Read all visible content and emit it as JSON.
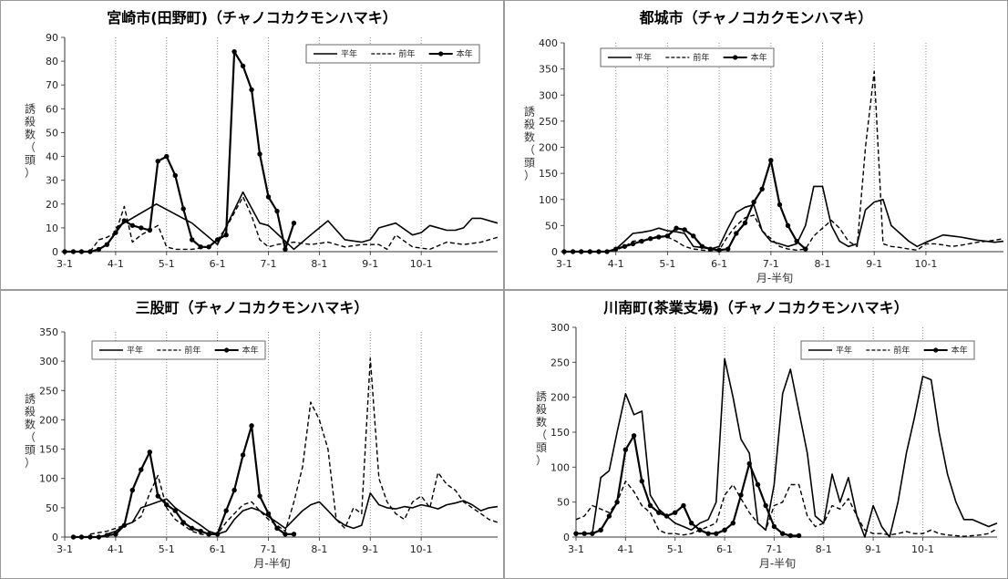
{
  "chart_data": [
    {
      "type": "line",
      "title": "宮崎市(田野町)（チャノコカクモンハマキ）",
      "xlabel": "",
      "ylabel": "誘殺数（頭）",
      "ylim": [
        0,
        90
      ],
      "yticks": [
        0,
        10,
        20,
        30,
        40,
        50,
        60,
        70,
        80,
        90
      ],
      "xticks": [
        "3-1",
        "4-1",
        "5-1",
        "6-1",
        "7-1",
        "8-1",
        "9-1",
        "10-1"
      ],
      "legend": "top-right",
      "series": [
        {
          "name": "平年",
          "style": "solid",
          "x": [
            4.0,
            4.8,
            5.5,
            6.0,
            6.5,
            6.83,
            7.0,
            7.5,
            7.83,
            8.17,
            8.5,
            8.83,
            9.0,
            9.17,
            9.5,
            9.83,
            10.0,
            10.17,
            10.5,
            10.67,
            10.83,
            11.0,
            11.17,
            11.5
          ],
          "values": [
            10,
            20,
            12,
            3,
            25,
            12,
            11,
            1,
            7,
            13,
            5,
            4,
            5,
            10,
            12,
            7,
            8,
            11,
            9,
            9,
            10,
            14,
            14,
            12
          ]
        },
        {
          "name": "前年",
          "style": "dashed",
          "x": [
            3.5,
            3.67,
            3.83,
            4.0,
            4.17,
            4.33,
            4.5,
            4.83,
            5.0,
            5.17,
            5.5,
            5.83,
            6.0,
            6.17,
            6.5,
            6.67,
            6.83,
            7.0,
            7.17,
            7.5,
            7.83,
            8.17,
            8.5,
            8.83,
            9.17,
            9.33,
            9.5,
            9.83,
            10.17,
            10.5,
            10.83,
            11.17,
            11.5
          ],
          "values": [
            0,
            5,
            6,
            8,
            19,
            4,
            7,
            11,
            2,
            1,
            1,
            2,
            5,
            10,
            23,
            15,
            5,
            2,
            3,
            4,
            3,
            4,
            2,
            3,
            3,
            1,
            7,
            2,
            1,
            4,
            3,
            4,
            6
          ]
        },
        {
          "name": "本年",
          "style": "markers",
          "x": [
            3.0,
            3.17,
            3.33,
            3.5,
            3.67,
            3.83,
            4.0,
            4.17,
            4.33,
            4.5,
            4.67,
            4.83,
            5.0,
            5.17,
            5.33,
            5.5,
            5.67,
            5.83,
            6.0,
            6.17,
            6.33,
            6.5,
            6.67,
            6.83,
            7.0,
            7.17,
            7.33,
            7.5
          ],
          "values": [
            0,
            0,
            0,
            0,
            1,
            3,
            8,
            13,
            11,
            10,
            9,
            38,
            40,
            32,
            18,
            5,
            2,
            2,
            5,
            7,
            84,
            78,
            68,
            41,
            23,
            17,
            1,
            12
          ]
        }
      ]
    },
    {
      "type": "line",
      "title": "都城市（チャノコカクモンハマキ）",
      "xlabel": "月-半旬",
      "ylabel": "誘殺数（頭）",
      "ylim": [
        0,
        400
      ],
      "yticks": [
        0,
        50,
        100,
        150,
        200,
        250,
        300,
        350,
        400
      ],
      "xticks": [
        "3-1",
        "4-1",
        "5-1",
        "6-1",
        "7-1",
        "8-1",
        "9-1",
        "10-1"
      ],
      "legend": "top-right",
      "series": [
        {
          "name": "平年",
          "style": "solid",
          "x": [
            3.83,
            4.0,
            4.17,
            4.33,
            4.5,
            4.67,
            4.83,
            5.0,
            5.17,
            5.33,
            5.5,
            5.67,
            5.83,
            6.0,
            6.17,
            6.33,
            6.5,
            6.67,
            6.83,
            7.0,
            7.17,
            7.33,
            7.5,
            7.67,
            7.83,
            8.0,
            8.17,
            8.33,
            8.5,
            8.67,
            8.83,
            9.0,
            9.17,
            9.33,
            9.5,
            9.67,
            9.83,
            10.0,
            10.17,
            10.33,
            10.5,
            10.67,
            10.83,
            11.0,
            11.17,
            11.33,
            11.5
          ],
          "values": [
            0,
            5,
            20,
            35,
            37,
            40,
            45,
            40,
            38,
            35,
            10,
            8,
            5,
            10,
            45,
            75,
            85,
            90,
            40,
            20,
            15,
            10,
            15,
            50,
            125,
            125,
            50,
            20,
            10,
            15,
            80,
            95,
            100,
            50,
            35,
            20,
            10,
            18,
            25,
            32,
            30,
            28,
            25,
            22,
            20,
            18,
            20
          ]
        },
        {
          "name": "前年",
          "style": "dashed",
          "x": [
            3.5,
            3.83,
            4.0,
            4.17,
            4.33,
            4.5,
            4.67,
            4.83,
            5.0,
            5.17,
            5.33,
            5.5,
            5.67,
            5.83,
            6.0,
            6.17,
            6.33,
            6.5,
            6.67,
            6.83,
            7.0,
            7.17,
            7.33,
            7.5,
            7.67,
            7.83,
            8.0,
            8.17,
            8.33,
            8.5,
            8.67,
            8.83,
            9.0,
            9.17,
            9.33,
            9.5,
            9.67,
            9.83,
            10.0,
            10.17,
            10.33,
            10.5,
            10.67,
            10.83,
            11.0,
            11.17,
            11.33,
            11.5
          ],
          "values": [
            0,
            0,
            3,
            10,
            20,
            22,
            25,
            30,
            28,
            20,
            10,
            5,
            3,
            2,
            3,
            30,
            50,
            65,
            70,
            40,
            25,
            10,
            5,
            3,
            5,
            30,
            45,
            60,
            45,
            20,
            10,
            200,
            345,
            15,
            10,
            8,
            5,
            3,
            15,
            15,
            13,
            10,
            12,
            15,
            18,
            20,
            22,
            25
          ]
        },
        {
          "name": "本年",
          "style": "markers",
          "x": [
            3.0,
            3.17,
            3.33,
            3.5,
            3.67,
            3.83,
            4.0,
            4.17,
            4.33,
            4.5,
            4.67,
            4.83,
            5.0,
            5.17,
            5.33,
            5.5,
            5.67,
            5.83,
            6.0,
            6.17,
            6.33,
            6.5,
            6.67,
            6.83,
            7.0,
            7.17,
            7.33,
            7.5,
            7.67
          ],
          "values": [
            0,
            0,
            0,
            0,
            0,
            0,
            5,
            10,
            15,
            20,
            25,
            28,
            30,
            45,
            42,
            30,
            10,
            5,
            3,
            5,
            35,
            55,
            95,
            120,
            175,
            90,
            50,
            20,
            5
          ]
        }
      ]
    },
    {
      "type": "line",
      "title": "三股町（チャノコカクモンハマキ）",
      "xlabel": "月-半旬",
      "ylabel": "誘殺数（頭）",
      "ylim": [
        0,
        350
      ],
      "yticks": [
        0,
        50,
        100,
        150,
        200,
        250,
        300,
        350
      ],
      "xticks": [
        "3-1",
        "4-1",
        "5-1",
        "6-1",
        "7-1",
        "8-1",
        "9-1",
        "10-1"
      ],
      "legend": "top-left",
      "series": [
        {
          "name": "平年",
          "style": "solid",
          "x": [
            3.83,
            4.0,
            4.17,
            4.33,
            4.5,
            4.67,
            4.83,
            5.0,
            5.17,
            5.33,
            5.5,
            5.67,
            5.83,
            6.0,
            6.17,
            6.33,
            6.5,
            6.67,
            6.83,
            7.0,
            7.17,
            7.33,
            7.5,
            7.67,
            7.83,
            8.0,
            8.17,
            8.33,
            8.5,
            8.67,
            8.83,
            9.0,
            9.17,
            9.33,
            9.5,
            9.67,
            9.83,
            10.0,
            10.17,
            10.33,
            10.5,
            10.67,
            10.83,
            11.0,
            11.17,
            11.33,
            11.5
          ],
          "values": [
            5,
            10,
            20,
            25,
            50,
            55,
            60,
            65,
            50,
            40,
            30,
            20,
            10,
            5,
            10,
            30,
            45,
            50,
            45,
            35,
            25,
            15,
            30,
            45,
            55,
            60,
            45,
            30,
            20,
            15,
            20,
            75,
            55,
            50,
            48,
            52,
            50,
            55,
            52,
            48,
            55,
            58,
            62,
            55,
            45,
            50,
            52
          ]
        },
        {
          "name": "前年",
          "style": "dashed",
          "x": [
            3.5,
            3.83,
            4.0,
            4.17,
            4.33,
            4.5,
            4.67,
            4.83,
            5.0,
            5.17,
            5.33,
            5.5,
            5.67,
            5.83,
            6.0,
            6.17,
            6.33,
            6.5,
            6.67,
            6.83,
            7.0,
            7.17,
            7.33,
            7.5,
            7.67,
            7.83,
            8.0,
            8.17,
            8.33,
            8.5,
            8.67,
            8.83,
            9.0,
            9.17,
            9.33,
            9.5,
            9.67,
            9.83,
            10.0,
            10.17,
            10.33,
            10.5,
            10.67,
            10.83,
            11.0,
            11.17,
            11.33,
            11.5
          ],
          "values": [
            5,
            10,
            15,
            20,
            25,
            35,
            75,
            105,
            50,
            30,
            20,
            10,
            5,
            3,
            5,
            25,
            40,
            55,
            60,
            45,
            30,
            20,
            10,
            60,
            120,
            230,
            200,
            150,
            30,
            15,
            50,
            40,
            305,
            100,
            60,
            40,
            30,
            60,
            70,
            50,
            110,
            90,
            80,
            60,
            50,
            40,
            30,
            25
          ]
        },
        {
          "name": "本年",
          "style": "markers",
          "x": [
            3.17,
            3.33,
            3.5,
            3.67,
            3.83,
            4.0,
            4.17,
            4.33,
            4.5,
            4.67,
            4.83,
            5.0,
            5.17,
            5.33,
            5.5,
            5.67,
            5.83,
            6.0,
            6.17,
            6.33,
            6.5,
            6.67,
            6.83,
            7.0,
            7.17,
            7.33,
            7.5
          ],
          "values": [
            0,
            0,
            0,
            0,
            3,
            5,
            20,
            80,
            115,
            145,
            70,
            55,
            45,
            25,
            15,
            10,
            5,
            5,
            45,
            80,
            140,
            190,
            70,
            40,
            15,
            5,
            5
          ]
        }
      ]
    },
    {
      "type": "line",
      "title": "川南町(茶業支場)（チャノコカクモンハマキ）",
      "xlabel": "月-半旬",
      "ylabel": "誘殺数（頭）",
      "ylim": [
        0,
        300
      ],
      "yticks": [
        0,
        50,
        100,
        150,
        200,
        250,
        300
      ],
      "xticks": [
        "3-1",
        "4-1",
        "5-1",
        "6-1",
        "7-1",
        "8-1",
        "9-1",
        "10-1"
      ],
      "legend": "top-right",
      "series": [
        {
          "name": "平年",
          "style": "solid",
          "x": [
            3.33,
            3.5,
            3.67,
            3.83,
            4.0,
            4.17,
            4.33,
            4.5,
            4.67,
            4.83,
            5.0,
            5.17,
            5.33,
            5.5,
            5.67,
            5.83,
            6.0,
            6.17,
            6.33,
            6.5,
            6.67,
            6.83,
            7.0,
            7.17,
            7.33,
            7.5,
            7.67,
            7.83,
            8.0,
            8.17,
            8.33,
            8.5,
            8.67,
            8.83,
            9.0,
            9.17,
            9.33,
            9.5,
            9.67,
            9.83,
            10.0,
            10.17,
            10.33,
            10.5,
            10.67,
            10.83,
            11.0,
            11.17,
            11.33,
            11.5
          ],
          "values": [
            5,
            85,
            95,
            150,
            205,
            175,
            180,
            60,
            40,
            30,
            20,
            15,
            10,
            20,
            25,
            50,
            255,
            200,
            140,
            120,
            20,
            10,
            75,
            205,
            240,
            180,
            120,
            30,
            20,
            90,
            50,
            85,
            30,
            0,
            45,
            15,
            0,
            50,
            120,
            170,
            230,
            225,
            150,
            90,
            50,
            25,
            25,
            20,
            15,
            20
          ]
        },
        {
          "name": "前年",
          "style": "dashed",
          "x": [
            3.0,
            3.17,
            3.33,
            3.5,
            3.67,
            3.83,
            4.0,
            4.17,
            4.33,
            4.5,
            4.67,
            4.83,
            5.0,
            5.17,
            5.33,
            5.5,
            5.67,
            5.83,
            6.0,
            6.17,
            6.33,
            6.5,
            6.67,
            6.83,
            7.0,
            7.17,
            7.33,
            7.5,
            7.67,
            7.83,
            8.0,
            8.17,
            8.33,
            8.5,
            8.67,
            8.83,
            9.0,
            9.17,
            9.33,
            9.5,
            9.67,
            9.83,
            10.0,
            10.17,
            10.33,
            10.5,
            10.67,
            10.83,
            11.0,
            11.17,
            11.33,
            11.5
          ],
          "values": [
            25,
            30,
            45,
            40,
            35,
            50,
            80,
            65,
            45,
            35,
            10,
            5,
            5,
            3,
            5,
            10,
            15,
            20,
            60,
            75,
            55,
            35,
            20,
            10,
            45,
            50,
            75,
            75,
            30,
            15,
            20,
            45,
            40,
            55,
            30,
            10,
            5,
            5,
            3,
            5,
            8,
            5,
            5,
            10,
            5,
            3,
            2,
            1,
            2,
            3,
            5,
            12
          ]
        },
        {
          "name": "本年",
          "style": "markers",
          "x": [
            3.0,
            3.17,
            3.33,
            3.5,
            3.67,
            3.83,
            4.0,
            4.17,
            4.33,
            4.5,
            4.67,
            4.83,
            5.0,
            5.17,
            5.33,
            5.5,
            5.67,
            5.83,
            6.0,
            6.17,
            6.33,
            6.5,
            6.67,
            6.83,
            7.0,
            7.17,
            7.33,
            7.5
          ],
          "values": [
            5,
            5,
            5,
            10,
            30,
            50,
            125,
            145,
            80,
            45,
            35,
            30,
            35,
            45,
            20,
            10,
            5,
            5,
            10,
            20,
            60,
            105,
            75,
            45,
            15,
            5,
            2,
            2
          ]
        }
      ]
    }
  ]
}
